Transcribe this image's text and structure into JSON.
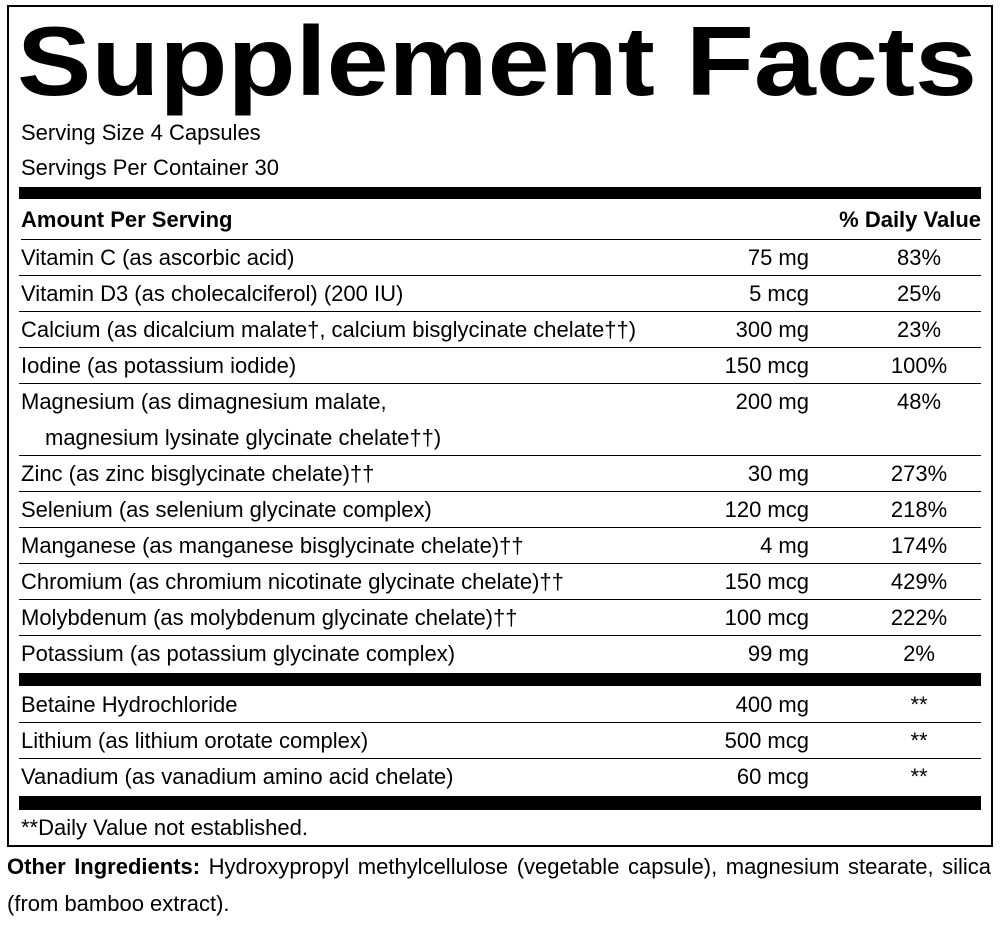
{
  "title": "Supplement Facts",
  "serving_size": "Serving Size 4 Capsules",
  "servings_per_container": "Servings Per Container 30",
  "header": {
    "amount": "Amount Per Serving",
    "dv": "% Daily Value"
  },
  "nutrients": [
    {
      "name": [
        "Vitamin C (as ascorbic acid)"
      ],
      "amount": "75 mg",
      "dv": "83%"
    },
    {
      "name": [
        "Vitamin D3 (as cholecalciferol) (200 IU)"
      ],
      "amount": "5 mcg",
      "dv": "25%"
    },
    {
      "name": [
        "Calcium (as dicalcium malate†, calcium bisglycinate chelate††)"
      ],
      "amount": "300 mg",
      "dv": "23%"
    },
    {
      "name": [
        "Iodine (as potassium iodide)"
      ],
      "amount": "150 mcg",
      "dv": "100%"
    },
    {
      "name": [
        "Magnesium (as dimagnesium malate,",
        "magnesium lysinate glycinate chelate††)"
      ],
      "amount": "200 mg",
      "dv": "48%"
    },
    {
      "name": [
        "Zinc (as zinc bisglycinate chelate)††"
      ],
      "amount": "30 mg",
      "dv": "273%"
    },
    {
      "name": [
        "Selenium (as selenium glycinate complex)"
      ],
      "amount": "120 mcg",
      "dv": "218%"
    },
    {
      "name": [
        "Manganese (as manganese bisglycinate chelate)††"
      ],
      "amount": "4 mg",
      "dv": "174%"
    },
    {
      "name": [
        "Chromium (as chromium nicotinate glycinate chelate)††"
      ],
      "amount": "150 mcg",
      "dv": "429%"
    },
    {
      "name": [
        "Molybdenum (as molybdenum glycinate chelate)††"
      ],
      "amount": "100 mcg",
      "dv": "222%"
    },
    {
      "name": [
        "Potassium (as potassium glycinate complex)"
      ],
      "amount": "99 mg",
      "dv": "2%"
    }
  ],
  "other_nutrients": [
    {
      "name": [
        "Betaine Hydrochloride"
      ],
      "amount": "400 mg",
      "dv": "**"
    },
    {
      "name": [
        "Lithium (as lithium orotate complex)"
      ],
      "amount": "500 mcg",
      "dv": "**"
    },
    {
      "name": [
        "Vanadium (as vanadium amino acid chelate)"
      ],
      "amount": "60 mcg",
      "dv": "**"
    }
  ],
  "footnote": "**Daily Value not established.",
  "other_ingredients": {
    "label": "Other Ingredients:",
    "text": "Hydroxypropyl methylcellulose (vegetable capsule), magnesium stearate, silica (from bamboo extract)."
  }
}
